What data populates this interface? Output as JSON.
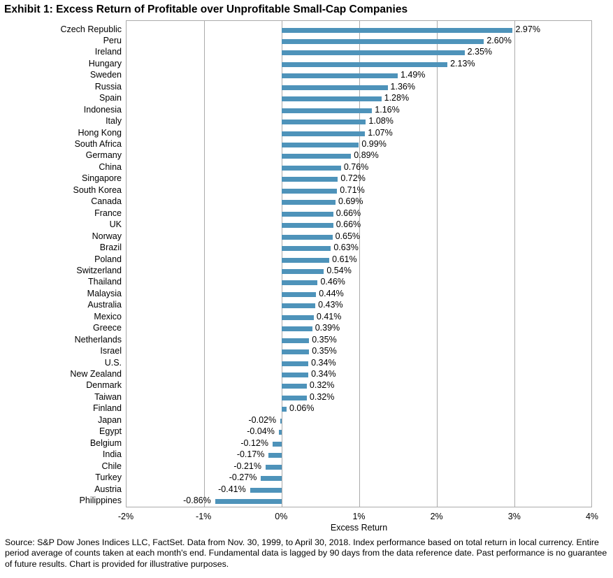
{
  "chart_data": {
    "type": "bar",
    "orientation": "horizontal",
    "title": "Exhibit 1: Excess Return of Profitable over Unprofitable Small-Cap Companies",
    "xlabel": "Excess Return",
    "xlim": [
      -2,
      4
    ],
    "xticks": [
      "-2%",
      "-1%",
      "0%",
      "1%",
      "2%",
      "3%",
      "4%"
    ],
    "xtick_values": [
      -2,
      -1,
      0,
      1,
      2,
      3,
      4
    ],
    "grid": true,
    "legend": "none",
    "bar_color": "#4e93ba",
    "categories": [
      "Czech Republic",
      "Peru",
      "Ireland",
      "Hungary",
      "Sweden",
      "Russia",
      "Spain",
      "Indonesia",
      "Italy",
      "Hong Kong",
      "South Africa",
      "Germany",
      "China",
      "Singapore",
      "South Korea",
      "Canada",
      "France",
      "UK",
      "Norway",
      "Brazil",
      "Poland",
      "Switzerland",
      "Thailand",
      "Malaysia",
      "Australia",
      "Mexico",
      "Greece",
      "Netherlands",
      "Israel",
      "U.S.",
      "New Zealand",
      "Denmark",
      "Taiwan",
      "Finland",
      "Japan",
      "Egypt",
      "Belgium",
      "India",
      "Chile",
      "Turkey",
      "Austria",
      "Philippines"
    ],
    "values": [
      2.97,
      2.6,
      2.35,
      2.13,
      1.49,
      1.36,
      1.28,
      1.16,
      1.08,
      1.07,
      0.99,
      0.89,
      0.76,
      0.72,
      0.71,
      0.69,
      0.66,
      0.66,
      0.65,
      0.63,
      0.61,
      0.54,
      0.46,
      0.44,
      0.43,
      0.41,
      0.39,
      0.35,
      0.35,
      0.34,
      0.34,
      0.32,
      0.32,
      0.06,
      -0.02,
      -0.04,
      -0.12,
      -0.17,
      -0.21,
      -0.27,
      -0.41,
      -0.86
    ],
    "value_labels": [
      "2.97%",
      "2.60%",
      "2.35%",
      "2.13%",
      "1.49%",
      "1.36%",
      "1.28%",
      "1.16%",
      "1.08%",
      "1.07%",
      "0.99%",
      "0.89%",
      "0.76%",
      "0.72%",
      "0.71%",
      "0.69%",
      "0.66%",
      "0.66%",
      "0.65%",
      "0.63%",
      "0.61%",
      "0.54%",
      "0.46%",
      "0.44%",
      "0.43%",
      "0.41%",
      "0.39%",
      "0.35%",
      "0.35%",
      "0.34%",
      "0.34%",
      "0.32%",
      "0.32%",
      "0.06%",
      "-0.02%",
      "-0.04%",
      "-0.12%",
      "-0.17%",
      "-0.21%",
      "-0.27%",
      "-0.41%",
      "-0.86%"
    ]
  },
  "footer": {
    "source_text": "Source: S&P Dow Jones Indices LLC, FactSet. Data from Nov. 30, 1999, to April 30, 2018. Index performance based on total return in local currency. Entire period average of counts taken at each month's end. Fundamental data is lagged by 90 days from the data reference date. Past performance is no guarantee of future results. Chart is provided for illustrative purposes."
  }
}
